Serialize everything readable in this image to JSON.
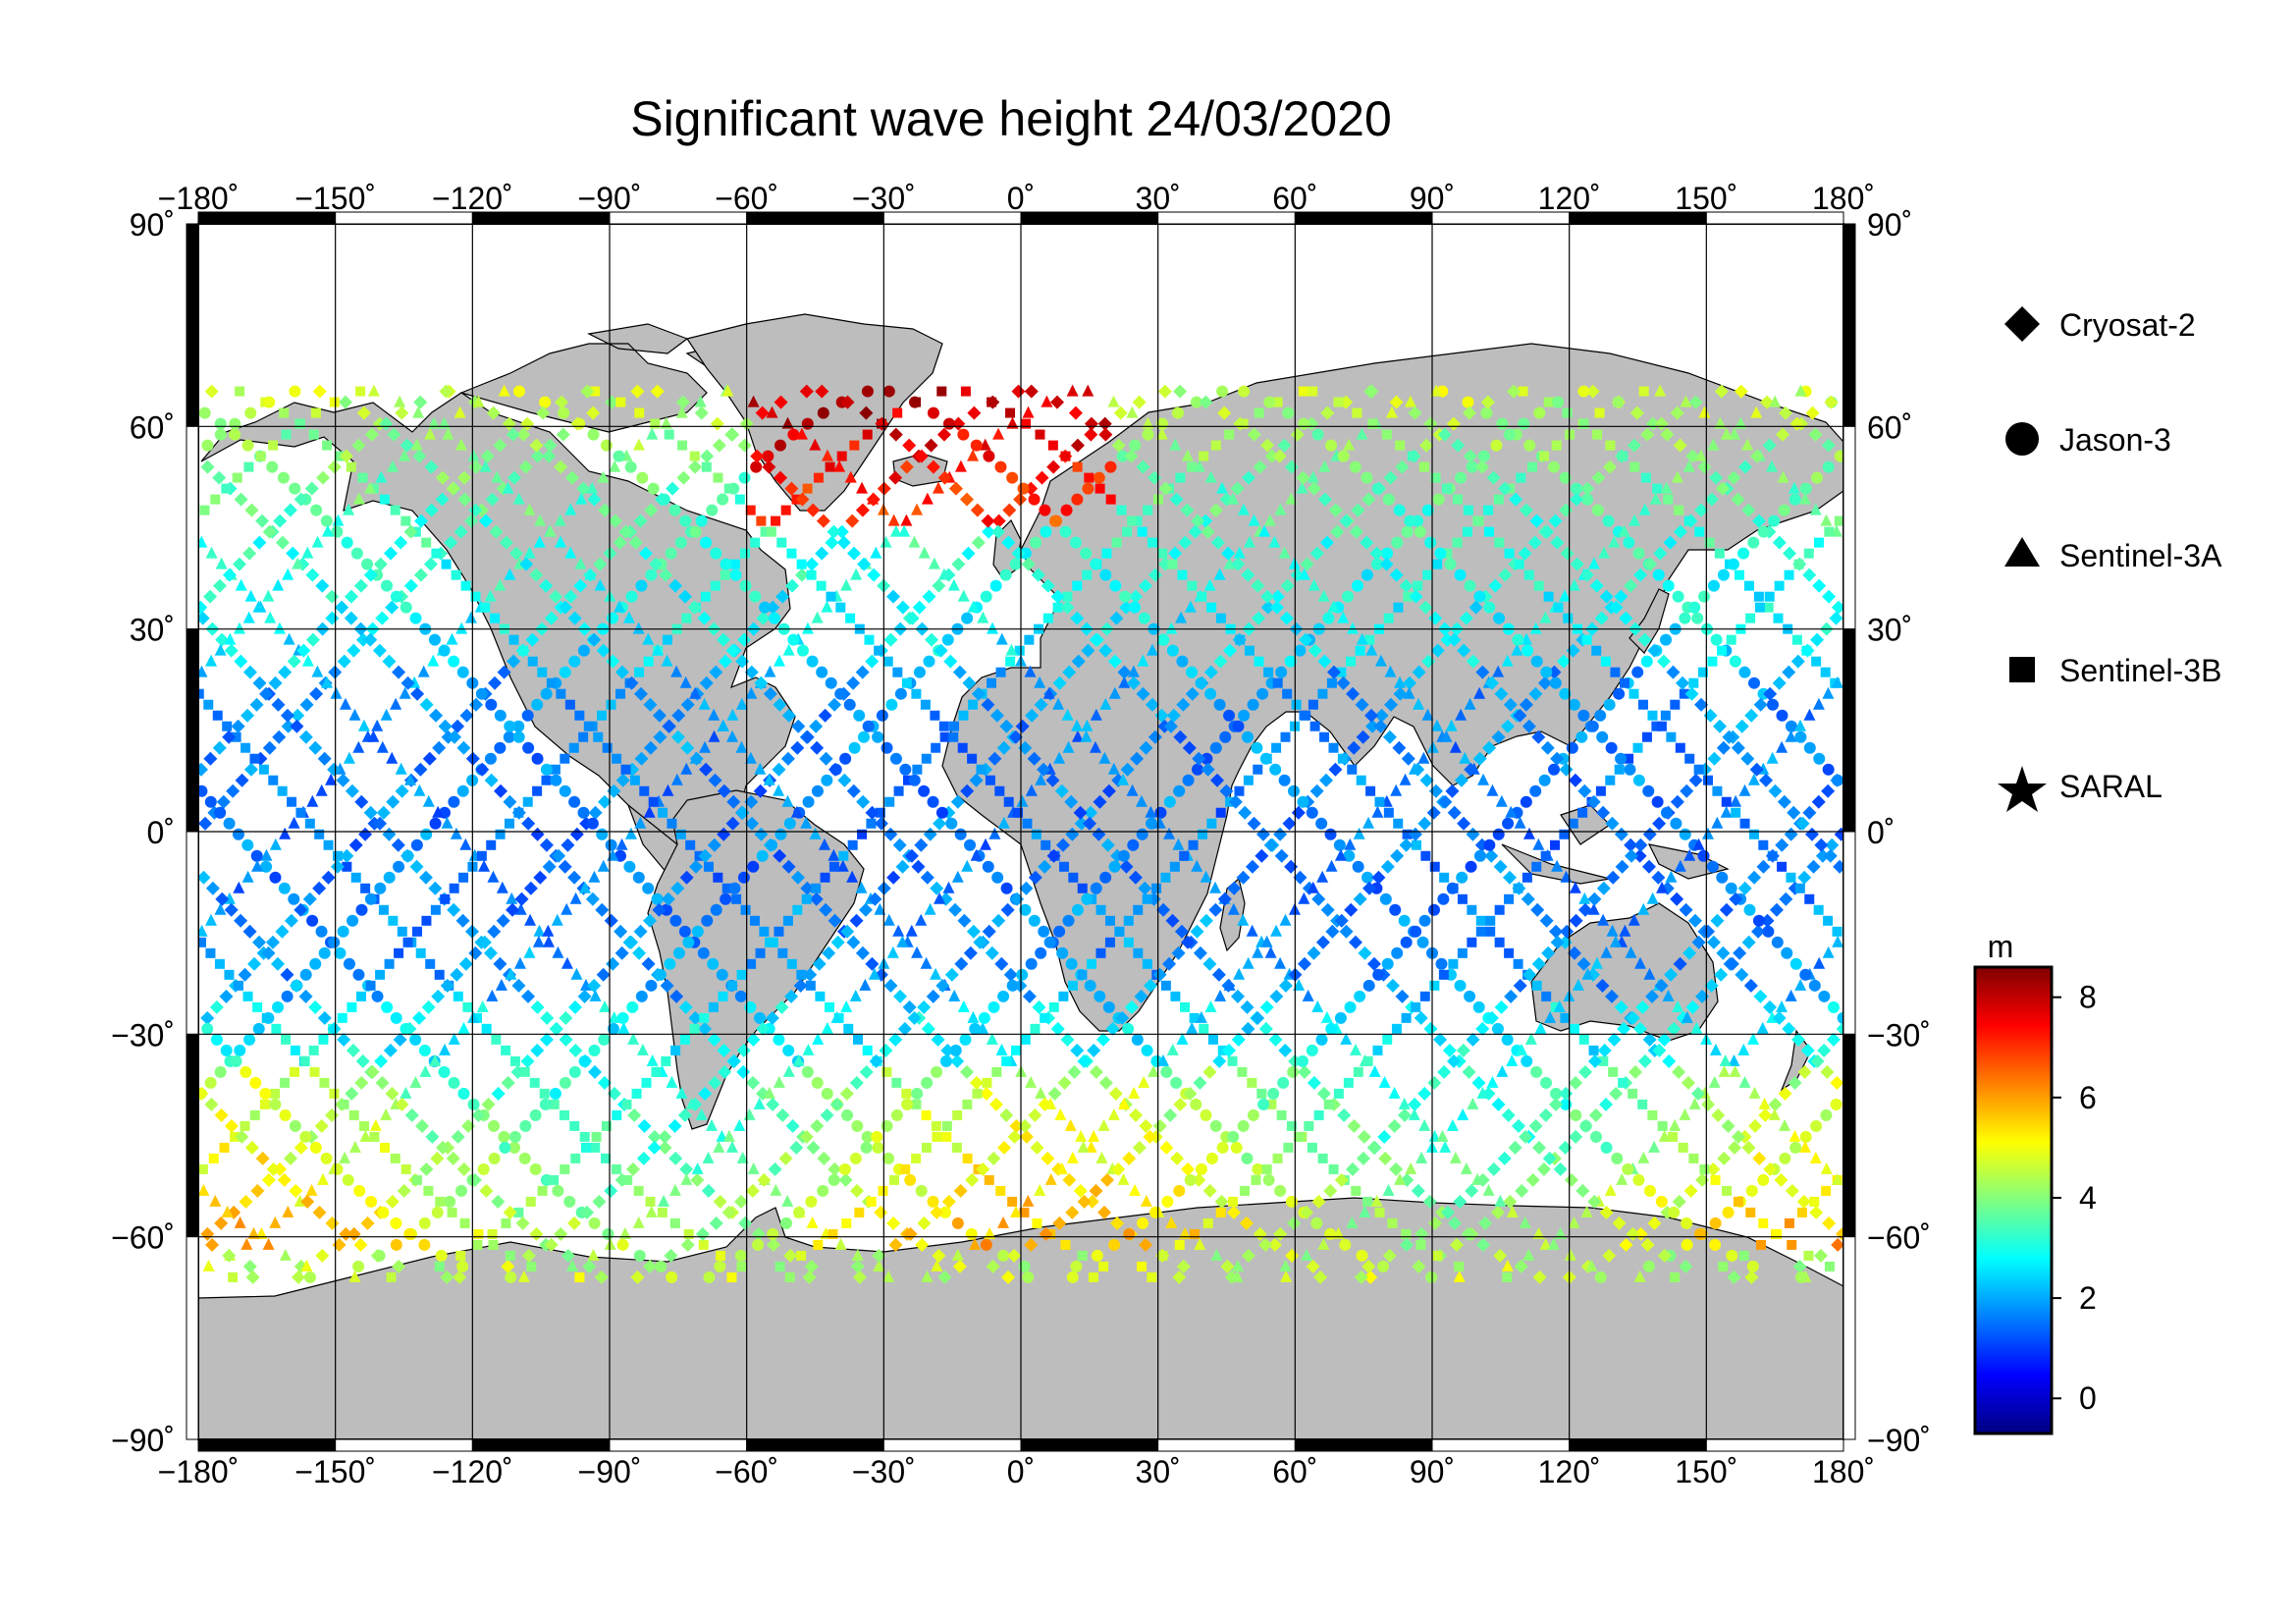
{
  "title": "Significant wave height 24/03/2020",
  "map": {
    "lon_ticks": [
      "−180˚",
      "−150˚",
      "−120˚",
      "−90˚",
      "−60˚",
      "−30˚",
      "0˚",
      "30˚",
      "60˚",
      "90˚",
      "120˚",
      "150˚",
      "180˚"
    ],
    "lat_ticks_left": [
      "90˚",
      "60˚",
      "30˚",
      "0˚",
      "−30˚",
      "−60˚",
      "−90˚"
    ],
    "lat_ticks_right": [
      "90˚",
      "60˚",
      "30˚",
      "0˚",
      "−30˚",
      "−60˚",
      "−90˚"
    ],
    "lon_range": [
      -180,
      180
    ],
    "lat_range": [
      -90,
      90
    ],
    "grid": true,
    "land_color": "#bdbdbd",
    "ocean_color": "#ffffff"
  },
  "legend": {
    "items": [
      {
        "label": "Cryosat-2",
        "icon": "diamond-icon"
      },
      {
        "label": "Jason-3",
        "icon": "circle-icon"
      },
      {
        "label": "Sentinel-3A",
        "icon": "triangle-icon"
      },
      {
        "label": "Sentinel-3B",
        "icon": "square-icon"
      },
      {
        "label": "SARAL",
        "icon": "star-icon"
      }
    ]
  },
  "colorbar": {
    "unit": "m",
    "ticks": [
      "8",
      "6",
      "4",
      "2",
      "0"
    ],
    "range": [
      -0.7,
      8.6
    ],
    "colors": [
      "#000080",
      "#0000ff",
      "#0080ff",
      "#00ffff",
      "#80ff80",
      "#ffff00",
      "#ff8000",
      "#ff0000",
      "#800000"
    ]
  }
}
